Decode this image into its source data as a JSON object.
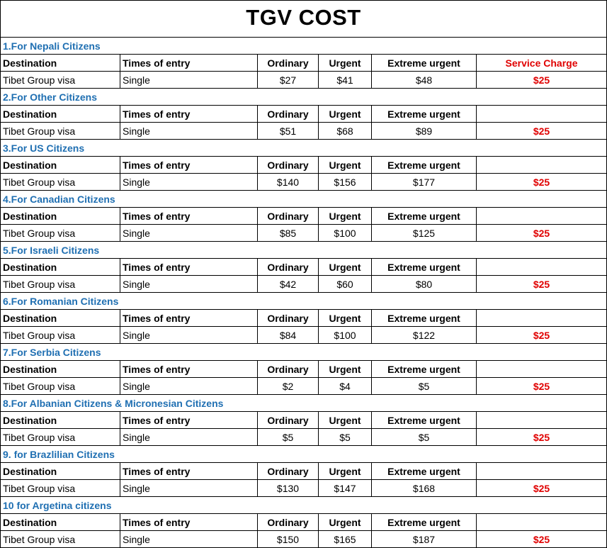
{
  "title": "TGV COST",
  "columns": {
    "destination": "Destination",
    "times": "Times of entry",
    "ordinary": "Ordinary",
    "urgent": "Urgent",
    "extreme": "Extreme urgent",
    "service": "Service Charge"
  },
  "sections": [
    {
      "heading": "1.For Nepali Citizens",
      "show_service_label": true,
      "row": {
        "destination": "Tibet Group visa",
        "times": "Single",
        "ordinary": "$27",
        "urgent": "$41",
        "extreme": "$48",
        "service": "$25"
      }
    },
    {
      "heading": "2.For Other Citizens",
      "show_service_label": false,
      "row": {
        "destination": "Tibet Group visa",
        "times": "Single",
        "ordinary": "$51",
        "urgent": "$68",
        "extreme": "$89",
        "service": "$25"
      }
    },
    {
      "heading": "3.For US Citizens",
      "show_service_label": false,
      "row": {
        "destination": "Tibet Group visa",
        "times": "Single",
        "ordinary": "$140",
        "urgent": "$156",
        "extreme": "$177",
        "service": "$25"
      }
    },
    {
      "heading": "4.For Canadian Citizens",
      "show_service_label": false,
      "row": {
        "destination": "Tibet Group visa",
        "times": "Single",
        "ordinary": "$85",
        "urgent": "$100",
        "extreme": "$125",
        "service": "$25"
      }
    },
    {
      "heading": "5.For Israeli Citizens",
      "show_service_label": false,
      "row": {
        "destination": "Tibet Group visa",
        "times": "Single",
        "ordinary": "$42",
        "urgent": "$60",
        "extreme": "$80",
        "service": "$25"
      }
    },
    {
      "heading": "6.For Romanian Citizens",
      "show_service_label": false,
      "row": {
        "destination": "Tibet Group visa",
        "times": "Single",
        "ordinary": "$84",
        "urgent": "$100",
        "extreme": "$122",
        "service": "$25"
      }
    },
    {
      "heading": "7.For Serbia Citizens",
      "show_service_label": false,
      "row": {
        "destination": "Tibet Group visa",
        "times": "Single",
        "ordinary": "$2",
        "urgent": "$4",
        "extreme": "$5",
        "service": "$25"
      }
    },
    {
      "heading": "8.For Albanian Citizens & Micronesian Citizens",
      "show_service_label": false,
      "row": {
        "destination": "Tibet Group visa",
        "times": "Single",
        "ordinary": "$5",
        "urgent": "$5",
        "extreme": "$5",
        "service": "$25"
      }
    },
    {
      "heading": "9. for Brazlilian Citizens",
      "show_service_label": false,
      "row": {
        "destination": "Tibet Group visa",
        "times": "Single",
        "ordinary": "$130",
        "urgent": "$147",
        "extreme": "$168",
        "service": "$25"
      }
    },
    {
      "heading": "10 for Argetina citizens",
      "show_service_label": false,
      "row": {
        "destination": "Tibet Group visa",
        "times": "Single",
        "ordinary": "$150",
        "urgent": "$165",
        "extreme": "$187",
        "service": "$25"
      }
    }
  ]
}
